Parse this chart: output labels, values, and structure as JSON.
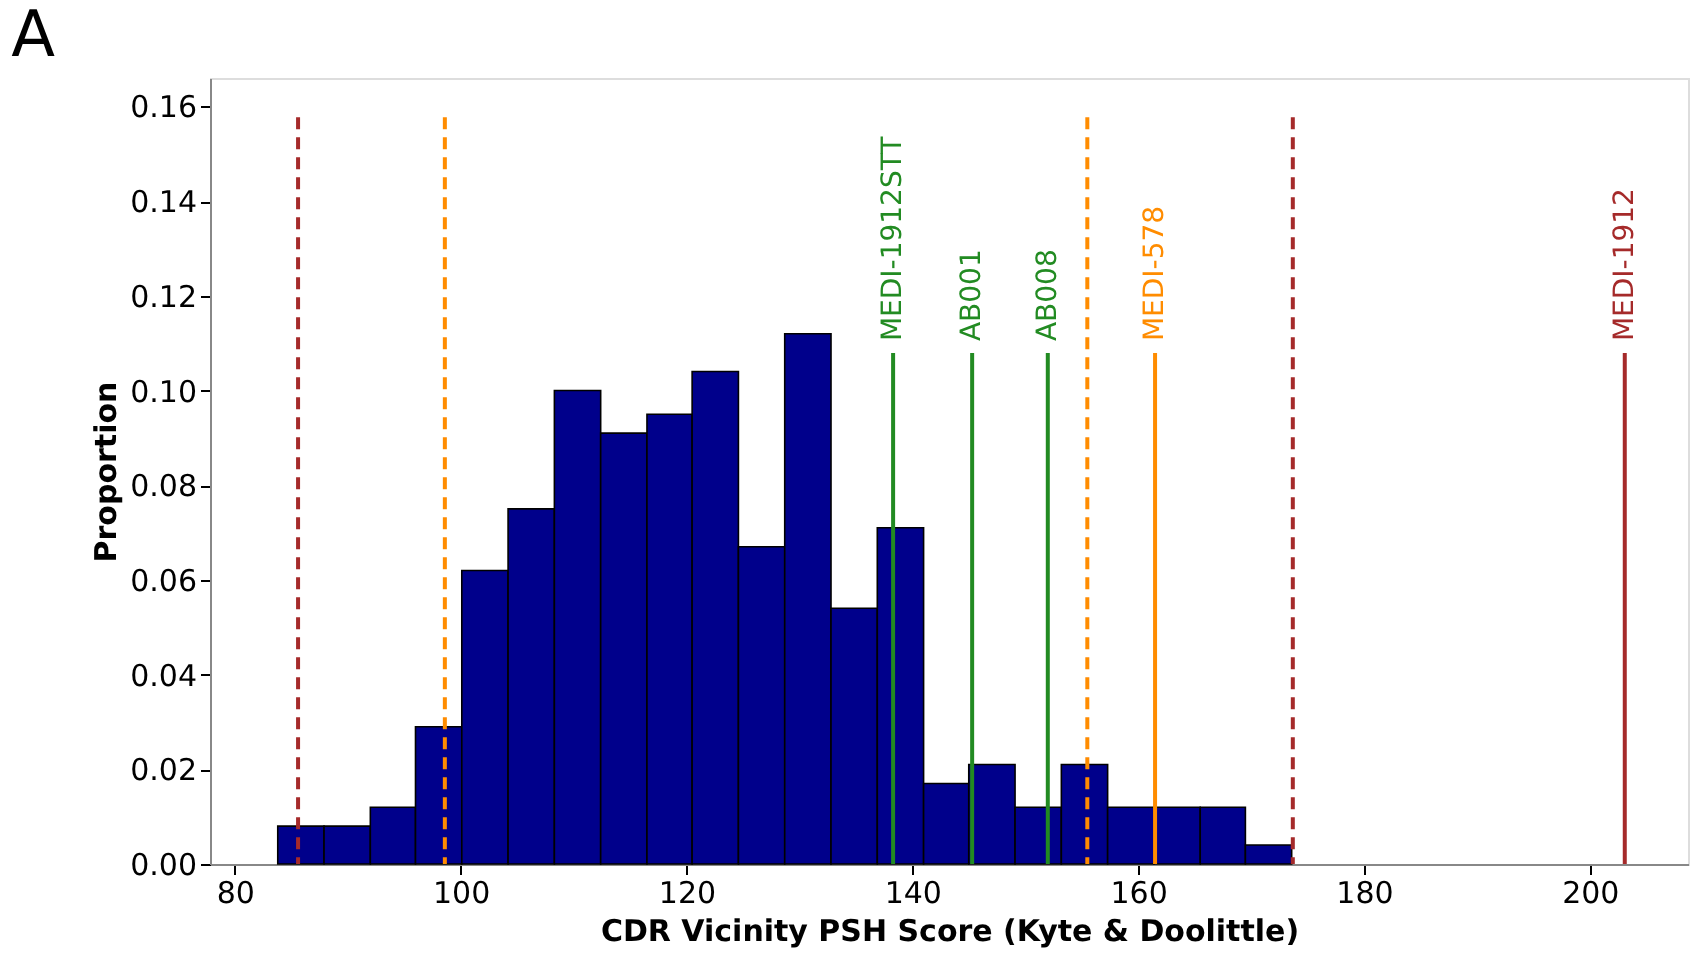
{
  "chart_data": {
    "type": "histogram",
    "title": "A",
    "xlabel": "CDR Vicinity PSH Score (Kyte & Doolittle)",
    "ylabel": "Proportion",
    "bins": [
      83.8,
      87.9,
      92.0,
      96.0,
      100.1,
      104.2,
      108.3,
      112.4,
      116.5,
      120.5,
      124.6,
      128.7,
      132.8,
      136.9,
      141.0,
      145.0,
      149.1,
      153.2,
      157.3,
      161.4,
      165.5,
      169.5,
      173.6
    ],
    "values": [
      0.008,
      0.008,
      0.012,
      0.029,
      0.062,
      0.075,
      0.1,
      0.091,
      0.095,
      0.104,
      0.067,
      0.112,
      0.054,
      0.071,
      0.017,
      0.021,
      0.012,
      0.021,
      0.012,
      0.012,
      0.012,
      0.004
    ],
    "color": "#00008b",
    "xlim": [
      77.8,
      208.7
    ],
    "ylim": [
      0,
      0.166
    ],
    "xticks": [
      80,
      100,
      120,
      140,
      160,
      180,
      200
    ],
    "yticks": [
      {
        "value": 0,
        "label": "0.00"
      },
      {
        "value": 0.02,
        "label": "0.02"
      },
      {
        "value": 0.04,
        "label": "0.04"
      },
      {
        "value": 0.06,
        "label": "0.06"
      },
      {
        "value": 0.08,
        "label": "0.08"
      },
      {
        "value": 0.1,
        "label": "0.10"
      },
      {
        "value": 0.12,
        "label": "0.12"
      },
      {
        "value": 0.14,
        "label": "0.14"
      },
      {
        "value": 0.16,
        "label": "0.16"
      }
    ],
    "grid": false,
    "ref_lines": [
      {
        "axis": "x",
        "value": 85.6,
        "color": "#a52a2a",
        "line_style": "dashed"
      },
      {
        "axis": "x",
        "value": 98.6,
        "color": "#ff8c00",
        "line_style": "dashed"
      },
      {
        "axis": "x",
        "value": 138.3,
        "color": "#228b22",
        "line_style": "solid",
        "label": "MEDI-1912STT"
      },
      {
        "axis": "x",
        "value": 145.3,
        "color": "#228b22",
        "line_style": "solid",
        "label": "AB001"
      },
      {
        "axis": "x",
        "value": 152.0,
        "color": "#228b22",
        "line_style": "solid",
        "label": "AB008"
      },
      {
        "axis": "x",
        "value": 155.5,
        "color": "#ff8c00",
        "line_style": "dashed"
      },
      {
        "axis": "x",
        "value": 161.5,
        "color": "#ff8c00",
        "line_style": "solid",
        "label": "MEDI-578"
      },
      {
        "axis": "x",
        "value": 173.7,
        "color": "#a52a2a",
        "line_style": "dashed"
      },
      {
        "axis": "x",
        "value": 203.1,
        "color": "#a52a2a",
        "line_style": "solid",
        "label": "MEDI-1912"
      }
    ]
  }
}
